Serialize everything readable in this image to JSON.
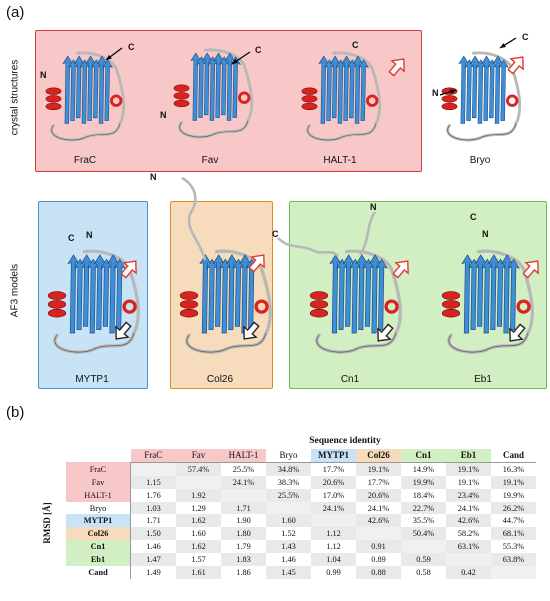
{
  "panel_a_label": "(a)",
  "panel_b_label": "(b)",
  "side_label_crystal": "crystal structures",
  "side_label_af3": "AF3 models",
  "terminus_labels": {
    "n": "N",
    "c": "C"
  },
  "structures": [
    {
      "name": "FraC"
    },
    {
      "name": "Fav"
    },
    {
      "name": "HALT-1"
    },
    {
      "name": "Bryo"
    },
    {
      "name": "MYTP1"
    },
    {
      "name": "Col26"
    },
    {
      "name": "Cn1"
    },
    {
      "name": "Eb1"
    }
  ],
  "colors": {
    "crystal_box": "#f8c8c8",
    "crystal_border": "#d63b3b",
    "mytp1_box": "#c9e3f6",
    "mytp1_border": "#4a90c8",
    "col26_box": "#f6dcbc",
    "col26_border": "#e08a2a",
    "cn_box": "#d2efc4",
    "cn_border": "#6cbf4d",
    "sheet": "#3f8fd8",
    "helix": "#d8231f",
    "loop": "#b8b8b8"
  },
  "table": {
    "col_title": "Sequence identity",
    "row_title": "RMSD [Å]",
    "columns": [
      "FraC",
      "Fav",
      "HALT-1",
      "Bryo",
      "MYTP1",
      "Col26",
      "Cn1",
      "Eb1",
      "Cand"
    ],
    "rows": [
      {
        "label": "FraC",
        "cells": [
          "",
          "57.4%",
          "25.5%",
          "34.8%",
          "17.7%",
          "19.1%",
          "14.9%",
          "19.1%",
          "16.3%"
        ]
      },
      {
        "label": "Fav",
        "cells": [
          "1.15",
          "",
          "24.1%",
          "38.3%",
          "20.6%",
          "17.7%",
          "19.9%",
          "19.1%",
          "19.1%"
        ]
      },
      {
        "label": "HALT-1",
        "cells": [
          "1.76",
          "1.92",
          "",
          "25.5%",
          "17.0%",
          "20.6%",
          "18.4%",
          "23.4%",
          "19.9%"
        ]
      },
      {
        "label": "Bryo",
        "cells": [
          "1.03",
          "1.29",
          "1.71",
          "",
          "24.1%",
          "24.1%",
          "22.7%",
          "24.1%",
          "26.2%"
        ]
      },
      {
        "label": "MYTP1",
        "cells": [
          "1.71",
          "1.62",
          "1.90",
          "1.60",
          "",
          "42.6%",
          "35.5%",
          "42.6%",
          "44.7%"
        ]
      },
      {
        "label": "Col26",
        "cells": [
          "1.50",
          "1.60",
          "1.80",
          "1.52",
          "1.12",
          "",
          "50.4%",
          "58.2%",
          "68.1%"
        ]
      },
      {
        "label": "Cn1",
        "cells": [
          "1.46",
          "1.62",
          "1.79",
          "1.43",
          "1.12",
          "0.91",
          "",
          "63.1%",
          "55.3%"
        ]
      },
      {
        "label": "Eb1",
        "cells": [
          "1.47",
          "1.57",
          "1.83",
          "1.46",
          "1.04",
          "0.89",
          "0.59",
          "",
          "63.8%"
        ]
      },
      {
        "label": "Cand",
        "cells": [
          "1.49",
          "1.61",
          "1.86",
          "1.45",
          "0.99",
          "0.88",
          "0.58",
          "0.42",
          ""
        ]
      }
    ],
    "header_colors": [
      "#f8c8c8",
      "#f8c8c8",
      "#f8c8c8",
      "#ffffff",
      "#c9e3f6",
      "#f6dcbc",
      "#d2efc4",
      "#d2efc4",
      "#ffffff"
    ]
  }
}
